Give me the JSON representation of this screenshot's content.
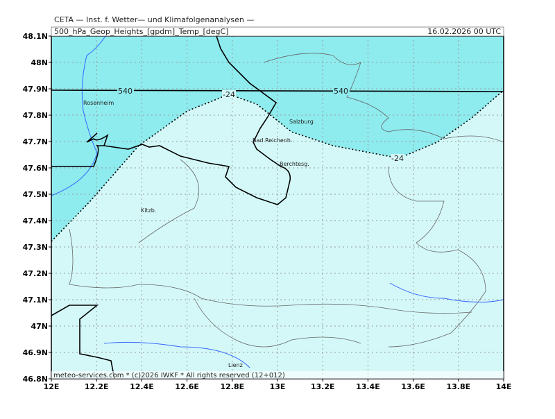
{
  "header": {
    "line1": "CETA — Inst. f. Wetter— und Klimafolgenanalysen —",
    "title": "500_hPa_Geop_Heights_[gpdm]_Temp_[degC]",
    "valid": "16.02.2026 00 UTC"
  },
  "axes": {
    "lat_labels": [
      "48.1N",
      "48N",
      "47.9N",
      "47.8N",
      "47.7N",
      "47.6N",
      "47.5N",
      "47.4N",
      "47.3N",
      "47.2N",
      "47.1N",
      "47N",
      "46.9N",
      "46.8N"
    ],
    "lon_labels": [
      "12E",
      "12.2E",
      "12.4E",
      "12.6E",
      "12.8E",
      "13E",
      "13.2E",
      "13.4E",
      "13.6E",
      "13.8E",
      "14E"
    ]
  },
  "places": [
    "Rosenheim",
    "Salzburg",
    "Bad Reichenh.",
    "Berchtesg.",
    "Kitzb.",
    "Lienz"
  ],
  "contour_labels": {
    "height": [
      "540",
      "540"
    ],
    "temp": [
      "-24",
      "-24"
    ]
  },
  "footer": "meteo-services.com * (c)2026 IWKF * All rights reserved (12+012)"
}
